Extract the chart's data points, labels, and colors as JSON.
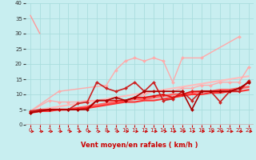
{
  "bg_color": "#c8eef0",
  "grid_color": "#aadddd",
  "xlabel": "Vent moyen/en rafales ( km/h )",
  "xlim": [
    -0.5,
    23.5
  ],
  "ylim": [
    0,
    40
  ],
  "xticks": [
    0,
    1,
    2,
    3,
    4,
    5,
    6,
    7,
    8,
    9,
    10,
    11,
    12,
    13,
    14,
    15,
    16,
    17,
    18,
    19,
    20,
    21,
    22,
    23
  ],
  "yticks": [
    0,
    5,
    10,
    15,
    20,
    25,
    30,
    35,
    40
  ],
  "series": [
    {
      "x": [
        0,
        1
      ],
      "y": [
        36,
        30
      ],
      "color": "#ff9999",
      "marker": null,
      "ms": 0,
      "lw": 1.0,
      "zorder": 2
    },
    {
      "x": [
        0,
        2,
        3,
        4,
        5,
        6,
        7,
        8,
        9,
        10,
        11,
        12,
        13,
        14,
        15,
        16,
        17,
        18,
        19,
        20,
        21,
        22,
        23
      ],
      "y": [
        4.5,
        8,
        7.5,
        7.5,
        7.5,
        8,
        8,
        8,
        8,
        8,
        9,
        10,
        11,
        11,
        11,
        12,
        12,
        13,
        13,
        14,
        14,
        14,
        19
      ],
      "color": "#ffaaaa",
      "marker": "D",
      "ms": 2,
      "lw": 1.0,
      "zorder": 3
    },
    {
      "x": [
        0,
        3,
        8,
        9,
        10,
        11,
        12,
        13,
        14,
        15,
        16,
        18,
        22
      ],
      "y": [
        4.5,
        11,
        13,
        18,
        21,
        22,
        21,
        22,
        21,
        14,
        22,
        22,
        29
      ],
      "color": "#ffaaaa",
      "marker": "D",
      "ms": 2,
      "lw": 1.0,
      "zorder": 3
    },
    {
      "x": [
        0,
        1,
        2,
        3,
        4,
        5,
        6,
        7,
        8,
        9,
        10,
        11,
        12,
        13,
        14,
        15,
        16,
        17,
        18,
        19,
        20,
        21,
        22,
        23
      ],
      "y": [
        4.5,
        5,
        5,
        5,
        5,
        7,
        7.5,
        14,
        12,
        11,
        12,
        14,
        11,
        14,
        8,
        8.5,
        11,
        8,
        11,
        11,
        7.5,
        11,
        11,
        14.5
      ],
      "color": "#cc2222",
      "marker": "D",
      "ms": 2,
      "lw": 1.2,
      "zorder": 5
    },
    {
      "x": [
        0,
        1,
        2,
        3,
        4,
        5,
        6,
        7,
        8,
        9,
        10,
        11,
        12,
        13,
        14,
        15,
        16,
        17,
        18,
        19,
        20,
        21,
        22,
        23
      ],
      "y": [
        4.5,
        5,
        5.5,
        6,
        6.5,
        7,
        7.5,
        8,
        8.5,
        9,
        9.5,
        10,
        10.5,
        11,
        11.5,
        12,
        12.5,
        13,
        13.5,
        14,
        14.5,
        15,
        15.5,
        16
      ],
      "color": "#ffbbbb",
      "marker": null,
      "ms": 0,
      "lw": 1.5,
      "zorder": 2
    },
    {
      "x": [
        0,
        1,
        2,
        3,
        4,
        5,
        6,
        7,
        8,
        9,
        10,
        11,
        12,
        13,
        14,
        15,
        16,
        17,
        18,
        19,
        20,
        21,
        22,
        23
      ],
      "y": [
        4,
        4.5,
        5,
        5,
        5,
        5.5,
        6,
        6.5,
        7,
        7.5,
        8,
        8.5,
        8.5,
        9,
        9.5,
        10,
        10,
        10.5,
        11,
        11,
        11.5,
        11.5,
        12,
        12.5
      ],
      "color": "#ff6666",
      "marker": null,
      "ms": 0,
      "lw": 2.0,
      "zorder": 4
    },
    {
      "x": [
        0,
        1,
        2,
        3,
        4,
        5,
        6,
        7,
        8,
        9,
        10,
        11,
        12,
        13,
        14,
        15,
        16,
        17,
        18,
        19,
        20,
        21,
        22,
        23
      ],
      "y": [
        4,
        4.5,
        4.5,
        5,
        5,
        5.5,
        5.5,
        6,
        6.5,
        7,
        7.5,
        7.5,
        8,
        8,
        8.5,
        9,
        9.5,
        10,
        10,
        10.5,
        10.5,
        11,
        11,
        11.5
      ],
      "color": "#ff3333",
      "marker": null,
      "ms": 0,
      "lw": 1.5,
      "zorder": 4
    },
    {
      "x": [
        0,
        1,
        2,
        3,
        4,
        5,
        6,
        7,
        8,
        9,
        10,
        11,
        12,
        13,
        14,
        15,
        16,
        17,
        18,
        19,
        20,
        21,
        22,
        23
      ],
      "y": [
        4,
        4.5,
        5,
        5,
        5,
        5,
        5.5,
        8,
        8,
        8,
        8,
        9,
        9,
        9.5,
        10,
        9,
        10,
        11,
        11,
        11,
        11,
        11,
        12,
        14
      ],
      "color": "#dd1111",
      "marker": "D",
      "ms": 2,
      "lw": 1.2,
      "zorder": 5
    },
    {
      "x": [
        0,
        2,
        4,
        5,
        6,
        7,
        8,
        9,
        10,
        11,
        12,
        13,
        14,
        15,
        16,
        17,
        18,
        19,
        20,
        21,
        22,
        23
      ],
      "y": [
        4,
        5,
        5,
        5,
        5,
        8,
        8,
        9,
        8,
        9,
        11,
        11,
        11,
        11,
        11,
        5,
        11,
        11,
        11,
        11,
        12,
        14
      ],
      "color": "#aa0000",
      "marker": "D",
      "ms": 2,
      "lw": 1.2,
      "zorder": 5
    }
  ],
  "arrow_color": "#cc0000"
}
